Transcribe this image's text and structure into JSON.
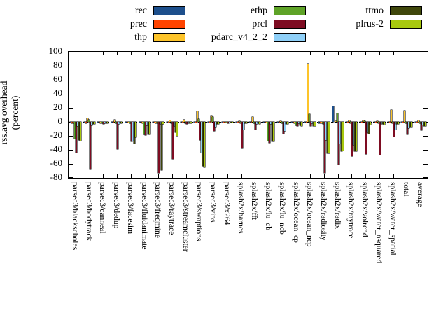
{
  "figure": {
    "ylabel_line1": "rss.avg overhead",
    "ylabel_line2": "(percent)"
  },
  "chart_data": {
    "type": "bar",
    "title": "",
    "xlabel": "",
    "ylabel": "rss.avg overhead (percent)",
    "ylim": [
      -80,
      100
    ],
    "yticks": [
      100,
      80,
      60,
      40,
      20,
      0,
      -20,
      -40,
      -60,
      -80
    ],
    "grid": false,
    "zero_axis": "dashed",
    "legend_position": "top",
    "legend_columns": [
      [
        "rec",
        "prec",
        "thp"
      ],
      [
        "ethp",
        "prcl",
        "pdarc_v4_2_2"
      ],
      [
        "ttmo",
        "plrus-2"
      ]
    ],
    "categories": [
      "parsec3/blackscholes",
      "parsec3/bodytrack",
      "parsec3/canneal",
      "parsec3/dedup",
      "parsec3/facesim",
      "parsec3/fluidanimate",
      "parsec3/freqmine",
      "parsec3/raytrace",
      "parsec3/streamcluster",
      "parsec3/swaptions",
      "parsec3/vips",
      "parsec3/x264",
      "splash2x/barnes",
      "splash2x/fft",
      "splash2x/lu_cb",
      "splash2x/lu_ncb",
      "splash2x/ocean_cp",
      "splash2x/ocean_ncp",
      "splash2x/radiosity",
      "splash2x/radix",
      "splash2x/raytrace",
      "splash2x/volrend",
      "splash2x/water_nsquared",
      "splash2x/water_spatial",
      "total",
      "average"
    ],
    "series": [
      {
        "name": "rec",
        "color": "#1d4f8c",
        "values": [
          -1,
          -1,
          -1,
          -1,
          -1,
          -1,
          -1,
          -1,
          -1,
          -1,
          -1,
          -1,
          -1,
          -1,
          -1,
          -1,
          -1,
          -1,
          -2,
          22,
          -1,
          -1,
          -1,
          -1,
          -1,
          -1
        ]
      },
      {
        "name": "prec",
        "color": "#ff4400",
        "values": [
          -2,
          -2,
          -1,
          -1,
          -1,
          -1,
          -1,
          -1,
          -1,
          -1,
          -1,
          -1,
          -1,
          -1,
          -1,
          -1,
          -1,
          -1,
          -2,
          0,
          -1,
          -1,
          -1,
          -1,
          -1,
          -1
        ]
      },
      {
        "name": "thp",
        "color": "#fdc42a",
        "values": [
          -2,
          5,
          -2,
          3,
          -1,
          -2,
          -2,
          2,
          3,
          15,
          9,
          -1,
          1,
          7,
          -1,
          1,
          -2,
          83,
          -2,
          1,
          2,
          2,
          1,
          17,
          16,
          2
        ]
      },
      {
        "name": "ethp",
        "color": "#5ea327",
        "values": [
          -24,
          3,
          -2,
          -2,
          -2,
          -18,
          -2,
          -2,
          -2,
          4,
          7,
          -1,
          -2,
          -2,
          -27,
          -2,
          -5,
          11,
          -3,
          12,
          -2,
          1,
          -2,
          -2,
          -2,
          -2
        ]
      },
      {
        "name": "prcl",
        "color": "#7e0c22",
        "values": [
          -44,
          -68,
          -3,
          -39,
          -28,
          -19,
          -73,
          -53,
          -3,
          -26,
          -13,
          -2,
          -38,
          -11,
          -30,
          -17,
          -6,
          -6,
          -73,
          -61,
          -49,
          -46,
          -47,
          -21,
          -18,
          -12
        ]
      },
      {
        "name": "pdarc_v4_2_2",
        "color": "#8fd0f8",
        "values": [
          -6,
          -5,
          -2,
          -3,
          -27,
          -5,
          -3,
          -6,
          -2,
          -44,
          -8,
          -1,
          -11,
          -3,
          -3,
          -13,
          -2,
          -2,
          -26,
          -31,
          -33,
          -15,
          -3,
          -11,
          -9,
          -4
        ]
      },
      {
        "name": "ttmo",
        "color": "#3f470b",
        "values": [
          -26,
          -3,
          -2,
          -2,
          -31,
          -18,
          -69,
          -15,
          -2,
          -63,
          -3,
          -1,
          -2,
          -2,
          -28,
          -3,
          -5,
          -6,
          -45,
          -42,
          -42,
          -17,
          -3,
          -3,
          -8,
          -6
        ]
      },
      {
        "name": "plrus-2",
        "color": "#a8c80e",
        "values": [
          -27,
          -3,
          -2,
          -2,
          -22,
          -18,
          -3,
          -20,
          -2,
          -65,
          -3,
          -1,
          -2,
          -3,
          -28,
          -3,
          -6,
          -6,
          -45,
          -41,
          -42,
          -4,
          -4,
          -3,
          -8,
          -6
        ]
      }
    ]
  }
}
